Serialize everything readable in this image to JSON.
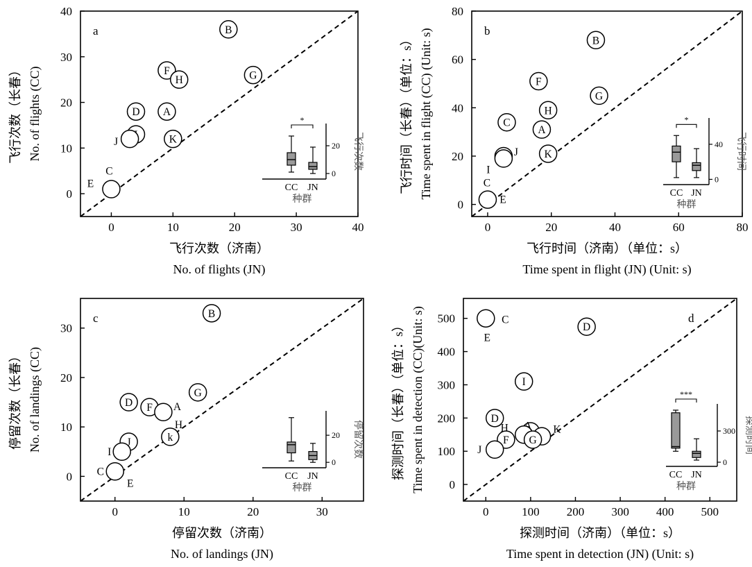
{
  "chart_data": [
    {
      "type": "scatter",
      "panel": "a",
      "xlabel_cn": "飞行次数（济南）",
      "xlabel_en": "No. of flights (JN)",
      "ylabel_cn": "飞行次数（长春）",
      "ylabel_en": "No. of flights (CC)",
      "xlim": [
        -5,
        40
      ],
      "ylim": [
        -5,
        40
      ],
      "xticks": [
        0,
        10,
        20,
        30,
        40
      ],
      "yticks": [
        0,
        10,
        20,
        30,
        40
      ],
      "diagonal": "y = x (dashed)",
      "points": [
        {
          "label": "B",
          "x": 19,
          "y": 36
        },
        {
          "label": "G",
          "x": 23,
          "y": 26
        },
        {
          "label": "F",
          "x": 9,
          "y": 27
        },
        {
          "label": "H",
          "x": 11,
          "y": 25
        },
        {
          "label": "D",
          "x": 4,
          "y": 18
        },
        {
          "label": "A",
          "x": 9,
          "y": 18
        },
        {
          "label": "I",
          "x": 4,
          "y": 13
        },
        {
          "label": "J",
          "x": 3,
          "y": 12
        },
        {
          "label": "K",
          "x": 10,
          "y": 12
        },
        {
          "label": "C",
          "x": 0,
          "y": 1
        },
        {
          "label": "E",
          "x": 0,
          "y": 1
        }
      ],
      "inset": {
        "type": "boxplot",
        "xlabel": "种群",
        "ylabel": "飞行次数",
        "categories": [
          "CC",
          "JN"
        ],
        "yticks": [
          0,
          20
        ],
        "ylim": [
          -4,
          36
        ],
        "significance": "*",
        "boxes": [
          {
            "name": "CC",
            "min": 1,
            "q1": 6,
            "median": 10,
            "q3": 15,
            "max": 27
          },
          {
            "name": "JN",
            "min": 0,
            "q1": 3,
            "median": 5,
            "q3": 8,
            "max": 19
          }
        ]
      }
    },
    {
      "type": "scatter",
      "panel": "b",
      "xlabel_cn": "飞行时间（济南）（单位：s）",
      "xlabel_en": "Time spent in flight (JN) (Unit: s)",
      "ylabel_cn": "飞行时间（长春）（单位：s）",
      "ylabel_en": "Time spent in flight (CC) (Unit: s)",
      "xlim": [
        -5,
        80
      ],
      "ylim": [
        -5,
        80
      ],
      "xticks": [
        0,
        20,
        40,
        60,
        80
      ],
      "yticks": [
        0,
        20,
        40,
        60,
        80
      ],
      "diagonal": "y = x (dashed)",
      "points": [
        {
          "label": "B",
          "x": 34,
          "y": 68
        },
        {
          "label": "F",
          "x": 16,
          "y": 51
        },
        {
          "label": "G",
          "x": 35,
          "y": 45
        },
        {
          "label": "H",
          "x": 19,
          "y": 39
        },
        {
          "label": "C",
          "x": 6,
          "y": 34
        },
        {
          "label": "A",
          "x": 17,
          "y": 31
        },
        {
          "label": "K",
          "x": 19,
          "y": 21
        },
        {
          "label": "J",
          "x": 5,
          "y": 20
        },
        {
          "label": "I",
          "x": 5,
          "y": 19
        },
        {
          "label": "C",
          "x": 0,
          "y": 2
        },
        {
          "label": "E",
          "x": 0,
          "y": 2
        }
      ],
      "inset": {
        "type": "boxplot",
        "xlabel": "种群",
        "ylabel": "飞行时间",
        "categories": [
          "CC",
          "JN"
        ],
        "yticks": [
          0,
          40
        ],
        "ylim": [
          -6,
          70
        ],
        "significance": "*",
        "boxes": [
          {
            "name": "CC",
            "min": 2,
            "q1": 20,
            "median": 31,
            "q3": 38,
            "max": 50
          },
          {
            "name": "JN",
            "min": 2,
            "q1": 10,
            "median": 16,
            "q3": 19,
            "max": 35
          }
        ]
      }
    },
    {
      "type": "scatter",
      "panel": "c",
      "xlabel_cn": "停留次数（济南）",
      "xlabel_en": "No. of landings (JN)",
      "ylabel_cn": "停留次数（长春）",
      "ylabel_en": "No. of landings (CC)",
      "xlim": [
        -5,
        36
      ],
      "ylim": [
        -5,
        36
      ],
      "xticks": [
        0,
        10,
        20,
        30
      ],
      "yticks": [
        0,
        10,
        20,
        30
      ],
      "diagonal": "y = x (dashed)",
      "points": [
        {
          "label": "B",
          "x": 14,
          "y": 33
        },
        {
          "label": "G",
          "x": 12,
          "y": 17
        },
        {
          "label": "D",
          "x": 2,
          "y": 15
        },
        {
          "label": "F",
          "x": 5,
          "y": 14
        },
        {
          "label": "A",
          "x": 7,
          "y": 13
        },
        {
          "label": "H",
          "x": 7,
          "y": 13
        },
        {
          "label": "k",
          "x": 8,
          "y": 8
        },
        {
          "label": "J",
          "x": 2,
          "y": 7
        },
        {
          "label": "I",
          "x": 1,
          "y": 5
        },
        {
          "label": "C",
          "x": 0,
          "y": 1
        },
        {
          "label": "E",
          "x": 0,
          "y": 1
        }
      ],
      "inset": {
        "type": "boxplot",
        "xlabel": "种群",
        "ylabel": "停留次数",
        "categories": [
          "CC",
          "JN"
        ],
        "yticks": [
          0,
          20
        ],
        "ylim": [
          -4,
          38
        ],
        "significance": "",
        "boxes": [
          {
            "name": "CC",
            "min": 1,
            "q1": 7,
            "median": 13,
            "q3": 15,
            "max": 33
          },
          {
            "name": "JN",
            "min": 0,
            "q1": 2,
            "median": 5,
            "q3": 8,
            "max": 14
          }
        ]
      }
    },
    {
      "type": "scatter",
      "panel": "d",
      "xlabel_cn": "探测时间（济南）（单位：s）",
      "xlabel_en": "Time spent in detection (JN) (Unit: s)",
      "ylabel_cn": "探测时间（长春）（单位：s）",
      "ylabel_en": "Time spent in detection (CC)(Unit: s)",
      "xlim": [
        -50,
        560
      ],
      "ylim": [
        -50,
        560
      ],
      "xticks": [
        0,
        100,
        200,
        300,
        400,
        500
      ],
      "yticks": [
        0,
        100,
        200,
        300,
        400,
        500
      ],
      "diagonal": "y = x (dashed)",
      "points": [
        {
          "label": "C",
          "x": 0,
          "y": 500
        },
        {
          "label": "E",
          "x": 0,
          "y": 500
        },
        {
          "label": "D",
          "x": 225,
          "y": 475
        },
        {
          "label": "I",
          "x": 85,
          "y": 310
        },
        {
          "label": "D",
          "x": 20,
          "y": 200
        },
        {
          "label": "A",
          "x": 100,
          "y": 160
        },
        {
          "label": "H",
          "x": 85,
          "y": 150
        },
        {
          "label": "K",
          "x": 125,
          "y": 145
        },
        {
          "label": "G",
          "x": 105,
          "y": 135
        },
        {
          "label": "F",
          "x": 45,
          "y": 135
        },
        {
          "label": "J",
          "x": 20,
          "y": 105
        }
      ],
      "inset": {
        "type": "boxplot",
        "xlabel": "种群",
        "ylabel": "探测时间",
        "categories": [
          "CC",
          "JN"
        ],
        "yticks": [
          0,
          300
        ],
        "ylim": [
          -40,
          560
        ],
        "significance": "***",
        "boxes": [
          {
            "name": "CC",
            "min": 105,
            "q1": 135,
            "median": 150,
            "q3": 475,
            "max": 500
          },
          {
            "name": "JN",
            "min": 20,
            "q1": 45,
            "median": 85,
            "q3": 105,
            "max": 225
          }
        ]
      }
    }
  ]
}
